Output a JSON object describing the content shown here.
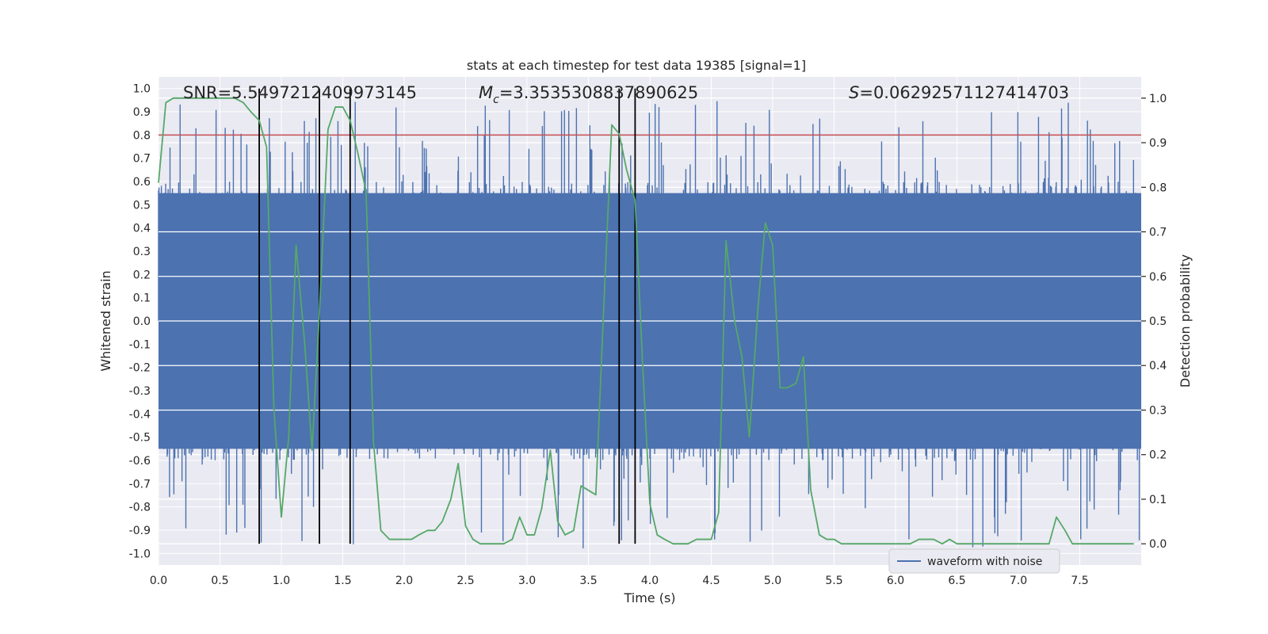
{
  "chart_data": {
    "type": "line",
    "title": "stats at each timestep for test data 19385 [signal=1]",
    "xlabel": "Time (s)",
    "ylabel": "Whitened strain",
    "ylabel_right": "Detection probability",
    "xlim": [
      0.0,
      8.0
    ],
    "ylim": [
      -1.05,
      1.05
    ],
    "ylim_right": [
      -0.0477,
      1.0477
    ],
    "xticks": [
      "0.0",
      "0.5",
      "1.0",
      "1.5",
      "2.0",
      "2.5",
      "3.0",
      "3.5",
      "4.0",
      "4.5",
      "5.0",
      "5.5",
      "6.0",
      "6.5",
      "7.0",
      "7.5"
    ],
    "xtick_values": [
      0.0,
      0.5,
      1.0,
      1.5,
      2.0,
      2.5,
      3.0,
      3.5,
      4.0,
      4.5,
      5.0,
      5.5,
      6.0,
      6.5,
      7.0,
      7.5
    ],
    "yticks": [
      "1.0",
      "0.9",
      "0.8",
      "0.7",
      "0.6",
      "0.5",
      "0.4",
      "0.3",
      "0.2",
      "0.1",
      "0.0",
      "-0.1",
      "-0.2",
      "-0.3",
      "-0.4",
      "-0.5",
      "-0.6",
      "-0.7",
      "-0.8",
      "-0.9",
      "-1.0"
    ],
    "ytick_values": [
      1.0,
      0.9,
      0.8,
      0.7,
      0.6,
      0.5,
      0.4,
      0.3,
      0.2,
      0.1,
      0.0,
      -0.1,
      -0.2,
      -0.3,
      -0.4,
      -0.5,
      -0.6,
      -0.7,
      -0.8,
      -0.9,
      -1.0
    ],
    "yticks_right": [
      "1.0",
      "0.9",
      "0.8",
      "0.7",
      "0.6",
      "0.5",
      "0.4",
      "0.3",
      "0.2",
      "0.1",
      "0.0"
    ],
    "ytick_right_values": [
      1.0,
      0.9,
      0.8,
      0.7,
      0.6,
      0.5,
      0.4,
      0.3,
      0.2,
      0.1,
      0.0
    ],
    "annotations": {
      "snr": "SNR=5.5497212409973145",
      "mc_symbol": "M",
      "mc_subscript": "c",
      "mc_value": "=3.3535308837890625",
      "s_symbol": "S",
      "s_value": "=0.06292571127414703"
    },
    "threshold": 0.8,
    "vlines_x": [
      0.82,
      1.31,
      1.56,
      3.75,
      3.88
    ],
    "series": [
      {
        "name": "waveform with noise",
        "color": "#4c72b0",
        "core_band": [
          -0.55,
          0.55
        ],
        "samples_per_second": 256
      },
      {
        "name": "detection probability",
        "color": "#55a868",
        "x": [
          0.0,
          0.06,
          0.12,
          0.19,
          0.25,
          0.31,
          0.38,
          0.44,
          0.5,
          0.56,
          0.62,
          0.69,
          0.75,
          0.82,
          0.88,
          0.94,
          1.0,
          1.06,
          1.12,
          1.19,
          1.25,
          1.31,
          1.38,
          1.44,
          1.5,
          1.56,
          1.62,
          1.69,
          1.75,
          1.81,
          1.88,
          1.94,
          2.0,
          2.06,
          2.12,
          2.19,
          2.25,
          2.31,
          2.38,
          2.44,
          2.5,
          2.56,
          2.62,
          2.69,
          2.75,
          2.81,
          2.88,
          2.94,
          3.0,
          3.06,
          3.12,
          3.19,
          3.25,
          3.31,
          3.38,
          3.44,
          3.5,
          3.56,
          3.62,
          3.69,
          3.75,
          3.81,
          3.88,
          3.94,
          4.0,
          4.06,
          4.12,
          4.19,
          4.25,
          4.31,
          4.38,
          4.44,
          4.5,
          4.56,
          4.62,
          4.69,
          4.75,
          4.81,
          4.88,
          4.94,
          5.0,
          5.06,
          5.12,
          5.19,
          5.25,
          5.31,
          5.38,
          5.44,
          5.5,
          5.56,
          5.62,
          5.69,
          5.75,
          5.81,
          5.88,
          5.94,
          6.0,
          6.06,
          6.12,
          6.19,
          6.25,
          6.31,
          6.38,
          6.44,
          6.5,
          6.56,
          6.62,
          6.69,
          6.75,
          6.81,
          6.88,
          6.94,
          7.0,
          7.06,
          7.12,
          7.19,
          7.25,
          7.31,
          7.38,
          7.44,
          7.5,
          7.56,
          7.62,
          7.69,
          7.75,
          7.81,
          7.88,
          7.94
        ],
        "values": [
          0.81,
          0.99,
          1.0,
          1.0,
          1.0,
          1.0,
          1.0,
          1.0,
          1.0,
          1.0,
          1.0,
          0.99,
          0.97,
          0.95,
          0.89,
          0.3,
          0.06,
          0.24,
          0.67,
          0.45,
          0.21,
          0.52,
          0.93,
          0.98,
          0.98,
          0.95,
          0.88,
          0.79,
          0.23,
          0.03,
          0.01,
          0.01,
          0.01,
          0.01,
          0.02,
          0.03,
          0.03,
          0.05,
          0.1,
          0.18,
          0.04,
          0.01,
          0.0,
          0.0,
          0.0,
          0.0,
          0.01,
          0.06,
          0.02,
          0.02,
          0.08,
          0.21,
          0.05,
          0.02,
          0.03,
          0.13,
          0.12,
          0.11,
          0.5,
          0.94,
          0.92,
          0.84,
          0.77,
          0.41,
          0.09,
          0.02,
          0.01,
          0.0,
          0.0,
          0.0,
          0.01,
          0.01,
          0.01,
          0.07,
          0.68,
          0.5,
          0.42,
          0.24,
          0.53,
          0.72,
          0.67,
          0.35,
          0.35,
          0.36,
          0.42,
          0.12,
          0.02,
          0.01,
          0.01,
          0.0,
          0.0,
          0.0,
          0.0,
          0.0,
          0.0,
          0.0,
          0.0,
          0.0,
          0.0,
          0.01,
          0.01,
          0.01,
          0.0,
          0.01,
          0.0,
          0.0,
          0.0,
          0.0,
          0.0,
          0.0,
          0.0,
          0.0,
          0.0,
          0.0,
          0.0,
          0.0,
          0.0,
          0.06,
          0.03,
          0.0,
          0.0,
          0.0,
          0.0,
          0.0,
          0.0,
          0.0,
          0.0,
          0.0
        ]
      }
    ],
    "legend": {
      "label": "waveform with noise",
      "position": "lower-right"
    }
  }
}
